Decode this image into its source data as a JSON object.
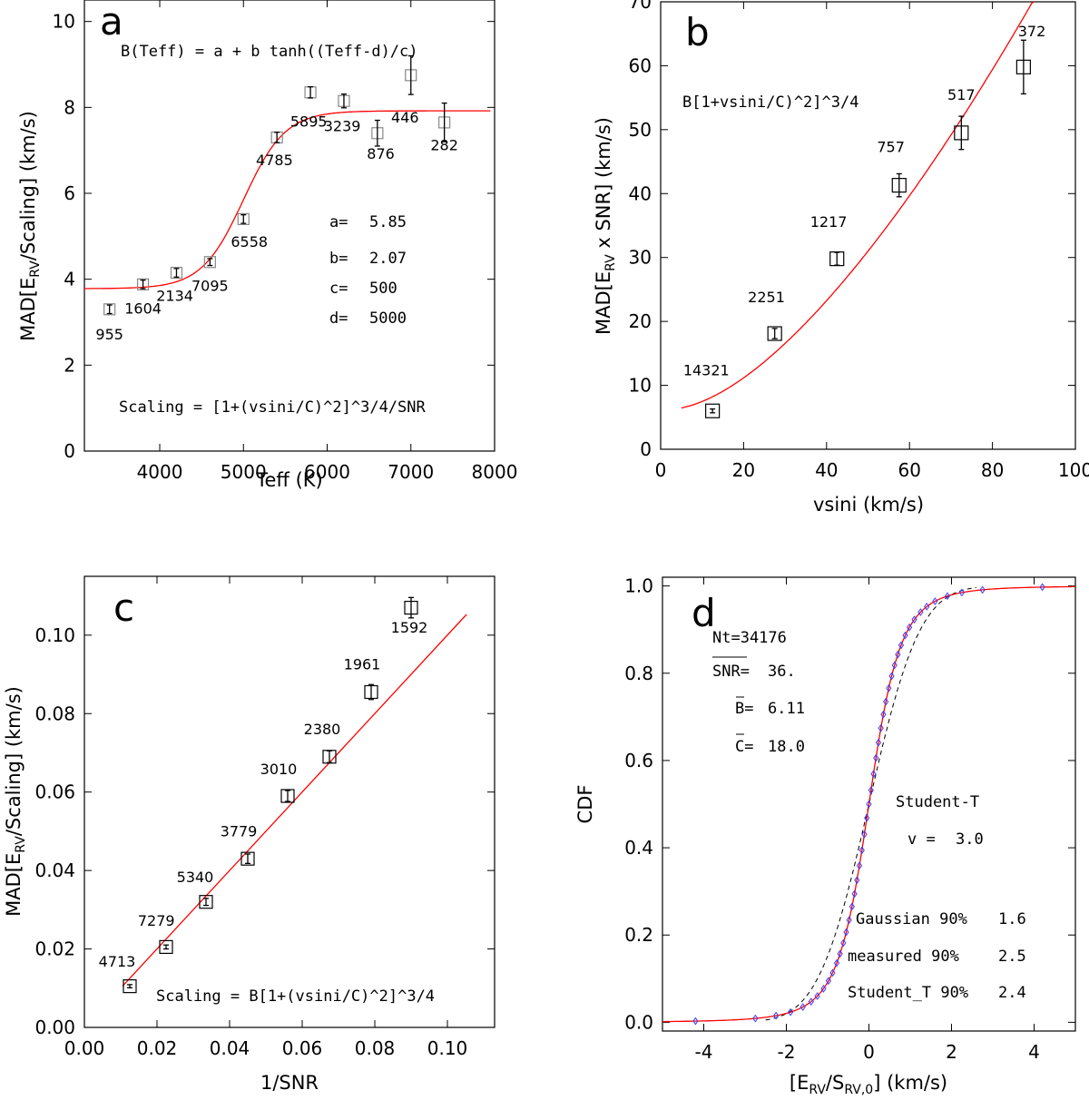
{
  "chart_data": [
    {
      "panel": "a",
      "type": "scatter",
      "xlabel": "Teff (K)",
      "ylabel": "MAD[E_RV/Scaling] (km/s)",
      "xlim": [
        3100,
        8000
      ],
      "ylim": [
        0,
        10.5
      ],
      "xticks": [
        4000,
        5000,
        6000,
        7000,
        8000
      ],
      "yticks": [
        0,
        2,
        4,
        6,
        8,
        10
      ],
      "formula": "B(Teff) = a + b tanh((Teff-d)/c)",
      "scaling_note": "Scaling = [1+(vsini/C)^2]^3/4/SNR",
      "params": [
        {
          "label": "a=",
          "value": "5.85"
        },
        {
          "label": "b=",
          "value": "2.07"
        },
        {
          "label": "c=",
          "value": "500"
        },
        {
          "label": "d=",
          "value": "5000"
        }
      ],
      "fit": {
        "a": 5.85,
        "b": 2.07,
        "c": 500,
        "d": 5000,
        "xrange": [
          3100,
          7950
        ]
      },
      "points": [
        {
          "x": 3400,
          "y": 3.3,
          "err": 0.1,
          "n": "955",
          "lx": 3400,
          "ly": 2.6
        },
        {
          "x": 3800,
          "y": 3.88,
          "err": 0.1,
          "n": "1604",
          "lx": 3800,
          "ly": 3.2
        },
        {
          "x": 4200,
          "y": 4.15,
          "err": 0.1,
          "n": "2134",
          "lx": 4180,
          "ly": 3.5
        },
        {
          "x": 4600,
          "y": 4.4,
          "err": 0.08,
          "n": "7095",
          "lx": 4600,
          "ly": 3.73
        },
        {
          "x": 5000,
          "y": 5.4,
          "err": 0.1,
          "n": "6558",
          "lx": 5070,
          "ly": 4.75
        },
        {
          "x": 5400,
          "y": 7.3,
          "err": 0.12,
          "n": "4785",
          "lx": 5370,
          "ly": 6.65
        },
        {
          "x": 5800,
          "y": 8.35,
          "err": 0.13,
          "n": "5895",
          "lx": 5780,
          "ly": 7.55
        },
        {
          "x": 6200,
          "y": 8.15,
          "err": 0.16,
          "n": "3239",
          "lx": 6180,
          "ly": 7.45
        },
        {
          "x": 6600,
          "y": 7.4,
          "err": 0.3,
          "n": "876",
          "lx": 6640,
          "ly": 6.8
        },
        {
          "x": 7000,
          "y": 8.75,
          "err": 0.45,
          "n": "446",
          "lx": 6930,
          "ly": 7.65
        },
        {
          "x": 7400,
          "y": 7.65,
          "err": 0.45,
          "n": "282",
          "lx": 7400,
          "ly": 7.0
        }
      ]
    },
    {
      "panel": "b",
      "type": "scatter",
      "xlabel": "vsini (km/s)",
      "ylabel": "MAD[E_RV x SNR] (km/s)",
      "xlim": [
        0,
        100
      ],
      "ylim": [
        0,
        70
      ],
      "xticks": [
        0,
        20,
        40,
        60,
        80,
        100
      ],
      "yticks": [
        0,
        10,
        20,
        30,
        40,
        50,
        60,
        70
      ],
      "formula": "B[1+vsini/C)^2]^3/4",
      "fit": {
        "B": 6.11,
        "C": 18.0,
        "xrange": [
          5,
          95
        ]
      },
      "points": [
        {
          "x": 12.5,
          "y": 6.0,
          "err": 0.3,
          "n": "14321",
          "lx": 11,
          "ly": 11.6
        },
        {
          "x": 27.5,
          "y": 18.1,
          "err": 0.8,
          "n": "2251",
          "lx": 25.5,
          "ly": 23.0
        },
        {
          "x": 42.5,
          "y": 29.8,
          "err": 1.0,
          "n": "1217",
          "lx": 40.5,
          "ly": 34.8
        },
        {
          "x": 57.5,
          "y": 41.3,
          "err": 1.8,
          "n": "757",
          "lx": 55.5,
          "ly": 46.5
        },
        {
          "x": 72.5,
          "y": 49.5,
          "err": 2.6,
          "n": "517",
          "lx": 72.5,
          "ly": 54.7
        },
        {
          "x": 87.5,
          "y": 59.8,
          "err": 4.2,
          "n": "372",
          "lx": 89.5,
          "ly": 64.6
        }
      ]
    },
    {
      "panel": "c",
      "type": "scatter",
      "xlabel": "1/SNR",
      "ylabel": "MAD[E_RV/Scaling] (km/s)",
      "xlim": [
        0,
        0.113
      ],
      "ylim": [
        0,
        0.115
      ],
      "xticks": [
        0.0,
        0.02,
        0.04,
        0.06,
        0.08,
        0.1
      ],
      "xtick_labels": [
        "0.00",
        "0.02",
        "0.04",
        "0.06",
        "0.08",
        "0.10"
      ],
      "yticks": [
        0.0,
        0.02,
        0.04,
        0.06,
        0.08,
        0.1
      ],
      "ytick_labels": [
        "0.00",
        "0.02",
        "0.04",
        "0.06",
        "0.08",
        "0.10"
      ],
      "scaling_note": "Scaling = B[1+(vsini/C)^2]^3/4",
      "fit": {
        "slope": 1.0,
        "intercept": 0.0,
        "xrange": [
          0.0105,
          0.1053
        ]
      },
      "points": [
        {
          "x": 0.0125,
          "y": 0.0105,
          "err": 0.0004,
          "n": "4713",
          "lx": 0.009,
          "ly": 0.0155
        },
        {
          "x": 0.0225,
          "y": 0.0205,
          "err": 0.0005,
          "n": "7279",
          "lx": 0.0198,
          "ly": 0.0259
        },
        {
          "x": 0.0335,
          "y": 0.032,
          "err": 0.0009,
          "n": "5340",
          "lx": 0.0305,
          "ly": 0.037
        },
        {
          "x": 0.045,
          "y": 0.043,
          "err": 0.0012,
          "n": "3779",
          "lx": 0.0425,
          "ly": 0.0487
        },
        {
          "x": 0.056,
          "y": 0.059,
          "err": 0.0014,
          "n": "3010",
          "lx": 0.0535,
          "ly": 0.0645
        },
        {
          "x": 0.0675,
          "y": 0.069,
          "err": 0.0015,
          "n": "2380",
          "lx": 0.0655,
          "ly": 0.0747
        },
        {
          "x": 0.079,
          "y": 0.0855,
          "err": 0.0019,
          "n": "1961",
          "lx": 0.0765,
          "ly": 0.0913
        },
        {
          "x": 0.09,
          "y": 0.107,
          "err": 0.0026,
          "n": "1592",
          "lx": 0.0895,
          "ly": 0.1006
        }
      ]
    },
    {
      "panel": "d",
      "type": "line",
      "xlabel": "[E_RV/S_RV,0] (km/s)",
      "ylabel": "CDF",
      "xlim": [
        -5,
        5
      ],
      "ylim": [
        -0.02,
        1.02
      ],
      "xticks": [
        -4,
        -2,
        0,
        2,
        4
      ],
      "yticks": [
        0.0,
        0.2,
        0.4,
        0.6,
        0.8,
        1.0
      ],
      "ytick_labels": [
        "0.0",
        "0.2",
        "0.4",
        "0.6",
        "0.8",
        "1.0"
      ],
      "stats": {
        "nt": "Nt=34176",
        "snr_label": "SNR=",
        "snr_value": "36.",
        "b_label": "B=",
        "b_value": "6.11",
        "c_label": "C=",
        "c_value": "18.0"
      },
      "student_t": {
        "title": "Student-T",
        "nu_label": "v =",
        "nu_value": "3.0",
        "nu": 3.0,
        "scale": 0.58
      },
      "gaussian": {
        "sigma": 0.973
      },
      "percentiles": [
        {
          "label": "Gaussian 90%",
          "value": "1.6"
        },
        {
          "label": "measured 90%",
          "value": "2.5"
        },
        {
          "label": "Student_T 90%",
          "value": "2.4"
        }
      ],
      "measured_x": [
        -4.2,
        -2.75,
        -2.25,
        -1.9,
        -1.6,
        -1.4,
        -1.25,
        -1.1,
        -0.98,
        -0.88,
        -0.78,
        -0.7,
        -0.62,
        -0.55,
        -0.48,
        -0.41,
        -0.35,
        -0.29,
        -0.23,
        -0.17,
        -0.11,
        -0.05,
        0.0,
        0.05,
        0.11,
        0.17,
        0.23,
        0.29,
        0.35,
        0.41,
        0.48,
        0.55,
        0.62,
        0.7,
        0.78,
        0.88,
        0.98,
        1.1,
        1.25,
        1.4,
        1.6,
        1.9,
        2.25,
        2.75,
        4.2
      ],
      "series": [
        {
          "name": "measured",
          "color": "#3b3bff",
          "style": "diamonds"
        },
        {
          "name": "Student-T fit",
          "color": "#ff0000",
          "style": "solid"
        },
        {
          "name": "Gaussian",
          "color": "#000000",
          "style": "dashed"
        }
      ]
    }
  ]
}
